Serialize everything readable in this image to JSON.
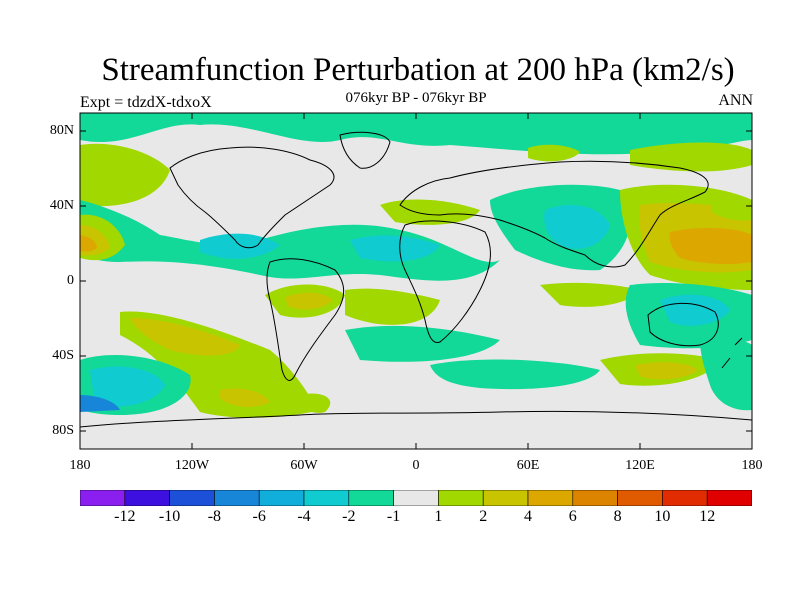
{
  "title": "Streamfunction Perturbation at 200 hPa (km2/s)",
  "subtitle": "076kyr BP - 076kyr BP",
  "left_label": "Expt = tdzdX-tdxoX",
  "right_label": "ANN",
  "lat_ticks": [
    "80N",
    "40N",
    "0",
    "40S",
    "80S"
  ],
  "lon_ticks": [
    "180",
    "120W",
    "60W",
    "0",
    "60E",
    "120E",
    "180"
  ],
  "colorbar": {
    "labels": [
      "-12",
      "-10",
      "-8",
      "-6",
      "-4",
      "-2",
      "-1",
      "1",
      "2",
      "4",
      "6",
      "8",
      "10",
      "12"
    ],
    "colors": [
      "#8a1ff0",
      "#3d10e0",
      "#1c50d8",
      "#1886d8",
      "#12aedb",
      "#10ccd0",
      "#12d898",
      "#e8e8e8",
      "#a0d800",
      "#c8c400",
      "#dca800",
      "#dc8400",
      "#e05a00",
      "#e02c00",
      "#e00000"
    ]
  },
  "map_colors": {
    "land_background": "#e8e8e8",
    "level_m1": "#12d898",
    "level_m2": "#10ccd0",
    "level_1": "#a0d800",
    "level_2": "#c8c400",
    "level_4": "#dca800"
  }
}
